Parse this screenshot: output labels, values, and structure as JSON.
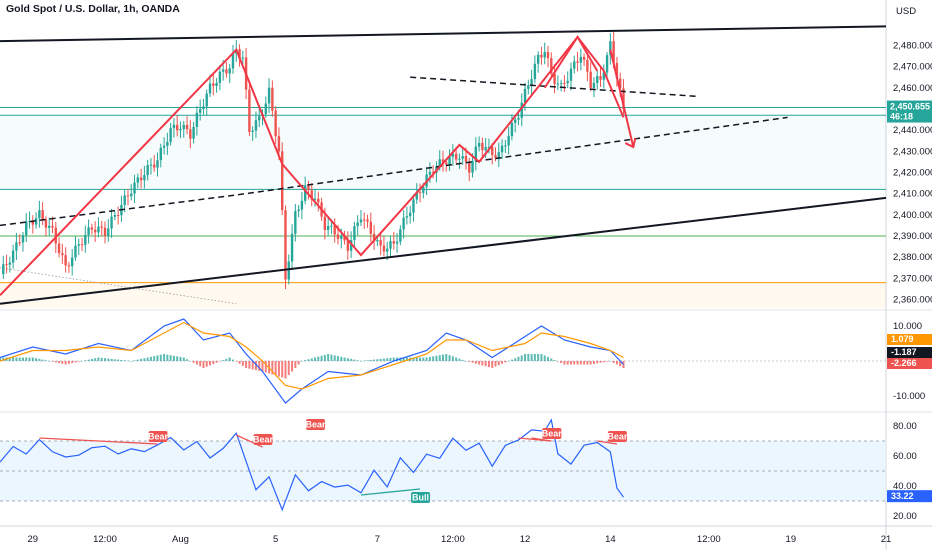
{
  "header": {
    "title": "Gold Spot / U.S. Dollar, 1h, OANDA",
    "currency": "USD"
  },
  "colors": {
    "up": "#26a69a",
    "down": "#ef5350",
    "pattern": "#f23645",
    "trend": "#131722",
    "rsi": "#2962ff",
    "rsi_band": "#e3f2fd",
    "macd_line": "#2962ff",
    "signal_line": "#ff9800",
    "hline_green": "#26a69a",
    "hline_orange": "#ff9800"
  },
  "chart_data": [
    {
      "panel": "price",
      "type": "candlestick",
      "x_axis": [
        "29",
        "12:00",
        "Aug",
        "5",
        "7",
        "12:00",
        "12",
        "14",
        "12:00",
        "19",
        "21"
      ],
      "y_ticks": [
        "2,480.000",
        "2,470.000",
        "2,460.000",
        "2,440.000",
        "2,430.000",
        "2,420.000",
        "2,410.000",
        "2,400.000",
        "2,390.000",
        "2,380.000",
        "2,370.000",
        "2,360.000"
      ],
      "ylim": [
        2356,
        2492
      ],
      "last_price": "2,450.655",
      "countdown": "46:18",
      "close_path": [
        [
          0,
          2372
        ],
        [
          4,
          2382
        ],
        [
          8,
          2395
        ],
        [
          12,
          2400
        ],
        [
          16,
          2392
        ],
        [
          20,
          2375
        ],
        [
          24,
          2386
        ],
        [
          28,
          2394
        ],
        [
          32,
          2392
        ],
        [
          36,
          2402
        ],
        [
          40,
          2412
        ],
        [
          44,
          2420
        ],
        [
          48,
          2426
        ],
        [
          52,
          2440
        ],
        [
          55,
          2442
        ],
        [
          58,
          2438
        ],
        [
          61,
          2450
        ],
        [
          64,
          2460
        ],
        [
          67,
          2466
        ],
        [
          70,
          2470
        ],
        [
          72,
          2478
        ],
        [
          74,
          2474
        ],
        [
          76,
          2440
        ],
        [
          79,
          2445
        ],
        [
          82,
          2458
        ],
        [
          85,
          2430
        ],
        [
          87,
          2370
        ],
        [
          90,
          2400
        ],
        [
          93,
          2412
        ],
        [
          96,
          2408
        ],
        [
          99,
          2395
        ],
        [
          102,
          2392
        ],
        [
          106,
          2385
        ],
        [
          110,
          2400
        ],
        [
          113,
          2392
        ],
        [
          116,
          2384
        ],
        [
          120,
          2386
        ],
        [
          124,
          2400
        ],
        [
          128,
          2412
        ],
        [
          132,
          2422
        ],
        [
          136,
          2426
        ],
        [
          140,
          2428
        ],
        [
          143,
          2422
        ],
        [
          146,
          2434
        ],
        [
          149,
          2430
        ],
        [
          152,
          2428
        ],
        [
          155,
          2438
        ],
        [
          158,
          2448
        ],
        [
          161,
          2462
        ],
        [
          164,
          2474
        ],
        [
          166,
          2478
        ],
        [
          168,
          2466
        ],
        [
          171,
          2460
        ],
        [
          174,
          2468
        ],
        [
          177,
          2476
        ],
        [
          180,
          2462
        ],
        [
          183,
          2464
        ],
        [
          186,
          2480
        ],
        [
          188,
          2466
        ],
        [
          190,
          2450
        ]
      ],
      "pattern_lines": [
        [
          [
            0,
            2362
          ],
          [
            72,
            2478
          ],
          [
            86,
            2424
          ],
          [
            110,
            2381
          ],
          [
            140,
            2433
          ],
          [
            146,
            2425
          ],
          [
            176,
            2484
          ],
          [
            184,
            2468
          ],
          [
            190,
            2446
          ]
        ],
        [
          [
            166,
            2460
          ],
          [
            176,
            2484
          ],
          [
            182,
            2468
          ]
        ],
        [
          [
            186,
            2478
          ],
          [
            193,
            2432
          ]
        ]
      ],
      "trend_lines": [
        [
          [
            0,
            2482
          ],
          [
            270,
            2489
          ]
        ],
        [
          [
            0,
            2358
          ],
          [
            270,
            2408
          ]
        ]
      ],
      "dashed_lines": [
        [
          [
            0,
            2395
          ],
          [
            75,
            2410
          ],
          [
            240,
            2446
          ]
        ],
        [
          [
            125,
            2465
          ],
          [
            212,
            2456
          ]
        ]
      ],
      "horizontal_levels": [
        {
          "y": 2450.655,
          "color": "#26a69a"
        },
        {
          "y": 2447,
          "color": "#26a69a"
        },
        {
          "y": 2412,
          "color": "#26a69a"
        },
        {
          "y": 2390,
          "color": "#4caf50"
        },
        {
          "y": 2368,
          "color": "#ff9800"
        }
      ]
    },
    {
      "panel": "macd",
      "type": "line+histogram",
      "y_ticks": [
        "10.000",
        "-10.000"
      ],
      "ylim": [
        -14,
        14
      ],
      "values": [
        "1.079",
        "-1.187",
        "-2.266"
      ],
      "macd": [
        [
          0,
          1
        ],
        [
          10,
          4
        ],
        [
          20,
          2
        ],
        [
          30,
          5
        ],
        [
          40,
          3
        ],
        [
          50,
          10
        ],
        [
          56,
          12
        ],
        [
          62,
          6
        ],
        [
          70,
          8
        ],
        [
          75,
          2
        ],
        [
          80,
          -3
        ],
        [
          87,
          -12
        ],
        [
          92,
          -8
        ],
        [
          100,
          -3
        ],
        [
          110,
          -4
        ],
        [
          120,
          0
        ],
        [
          130,
          3
        ],
        [
          136,
          8
        ],
        [
          142,
          6
        ],
        [
          150,
          1
        ],
        [
          160,
          7
        ],
        [
          165,
          10
        ],
        [
          172,
          6
        ],
        [
          180,
          4
        ],
        [
          186,
          3
        ],
        [
          190,
          -1
        ]
      ],
      "signal": [
        [
          0,
          0
        ],
        [
          10,
          3
        ],
        [
          20,
          3
        ],
        [
          30,
          4
        ],
        [
          40,
          3
        ],
        [
          50,
          8
        ],
        [
          56,
          11
        ],
        [
          62,
          8
        ],
        [
          70,
          7
        ],
        [
          75,
          4
        ],
        [
          80,
          0
        ],
        [
          87,
          -7
        ],
        [
          92,
          -8
        ],
        [
          100,
          -5
        ],
        [
          110,
          -4
        ],
        [
          120,
          -1
        ],
        [
          130,
          2
        ],
        [
          136,
          6
        ],
        [
          142,
          6
        ],
        [
          150,
          3
        ],
        [
          160,
          5
        ],
        [
          165,
          8
        ],
        [
          172,
          7
        ],
        [
          180,
          5
        ],
        [
          186,
          3
        ],
        [
          190,
          1
        ]
      ]
    },
    {
      "panel": "rsi",
      "type": "line",
      "y_ticks": [
        "80.00",
        "60.00",
        "40.00",
        "20.00"
      ],
      "ylim": [
        16,
        88
      ],
      "last_value": "33.22",
      "band": [
        30,
        70
      ],
      "mid": 50,
      "values": [
        [
          0,
          56
        ],
        [
          4,
          66
        ],
        [
          8,
          62
        ],
        [
          12,
          70
        ],
        [
          16,
          64
        ],
        [
          20,
          58
        ],
        [
          24,
          62
        ],
        [
          28,
          64
        ],
        [
          32,
          68
        ],
        [
          36,
          60
        ],
        [
          40,
          66
        ],
        [
          44,
          62
        ],
        [
          48,
          68
        ],
        [
          52,
          72
        ],
        [
          56,
          64
        ],
        [
          60,
          70
        ],
        [
          64,
          58
        ],
        [
          68,
          66
        ],
        [
          72,
          74
        ],
        [
          75,
          56
        ],
        [
          78,
          38
        ],
        [
          82,
          46
        ],
        [
          86,
          24
        ],
        [
          90,
          48
        ],
        [
          94,
          36
        ],
        [
          98,
          44
        ],
        [
          102,
          38
        ],
        [
          106,
          42
        ],
        [
          110,
          34
        ],
        [
          114,
          52
        ],
        [
          118,
          38
        ],
        [
          122,
          60
        ],
        [
          126,
          48
        ],
        [
          130,
          62
        ],
        [
          134,
          58
        ],
        [
          138,
          72
        ],
        [
          142,
          64
        ],
        [
          146,
          68
        ],
        [
          150,
          54
        ],
        [
          154,
          66
        ],
        [
          158,
          72
        ],
        [
          162,
          76
        ],
        [
          166,
          78
        ],
        [
          168,
          84
        ],
        [
          170,
          60
        ],
        [
          174,
          56
        ],
        [
          178,
          66
        ],
        [
          182,
          70
        ],
        [
          186,
          62
        ],
        [
          188,
          40
        ],
        [
          190,
          33
        ]
      ],
      "divergences": [
        {
          "label": "Bear",
          "from": [
            12,
            72
          ],
          "to": [
            48,
            68
          ]
        },
        {
          "label": "Bear",
          "from": [
            72,
            74
          ],
          "to": [
            80,
            66
          ]
        },
        {
          "label": "Bear",
          "from": [
            96,
            76
          ],
          "to": [
            96,
            76
          ]
        },
        {
          "label": "Bull",
          "from": [
            110,
            34
          ],
          "to": [
            128,
            38
          ]
        },
        {
          "label": "Bear",
          "from": [
            158,
            72
          ],
          "to": [
            168,
            70
          ]
        },
        {
          "label": "Bear",
          "from": [
            162,
            72
          ],
          "to": [
            168,
            70
          ]
        },
        {
          "label": "Bear",
          "from": [
            182,
            70
          ],
          "to": [
            188,
            68
          ]
        }
      ]
    }
  ]
}
